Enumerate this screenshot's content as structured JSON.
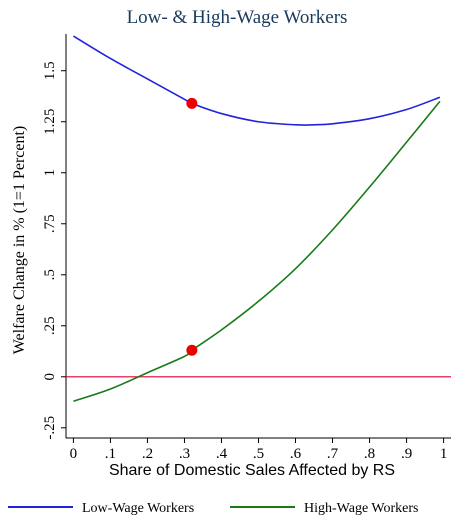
{
  "chart_data": {
    "type": "line",
    "title": "Low- & High-Wage Workers",
    "xlabel": "Share of Domestic Sales Affected by RS",
    "ylabel": "Welfare Change in % (1=1 Percent)",
    "xlim": [
      -0.02,
      1.02
    ],
    "ylim": [
      -0.3,
      1.68
    ],
    "xticks": [
      0,
      0.1,
      0.2,
      0.3,
      0.4,
      0.5,
      0.6,
      0.7,
      0.8,
      0.9,
      1
    ],
    "xtick_labels": [
      "0",
      ".1",
      ".2",
      ".3",
      ".4",
      ".5",
      ".6",
      ".7",
      ".8",
      ".9",
      "1"
    ],
    "yticks": [
      -0.25,
      0,
      0.25,
      0.5,
      0.75,
      1,
      1.25,
      1.5
    ],
    "ytick_labels": [
      "-.25",
      "0",
      ".25",
      ".5",
      ".75",
      "1",
      "1.25",
      "1.5"
    ],
    "grid": false,
    "legend": "bottom",
    "reference_line": {
      "y": 0,
      "color": "#e0003c"
    },
    "series": [
      {
        "name": "Low-Wage Workers",
        "color": "#2222dd",
        "x": [
          0,
          0.1,
          0.2,
          0.3,
          0.32,
          0.4,
          0.5,
          0.6,
          0.65,
          0.7,
          0.8,
          0.9,
          0.99
        ],
        "y": [
          1.67,
          1.56,
          1.46,
          1.36,
          1.34,
          1.29,
          1.25,
          1.235,
          1.235,
          1.24,
          1.265,
          1.31,
          1.37
        ]
      },
      {
        "name": "High-Wage Workers",
        "color": "#1a7a1a",
        "x": [
          0,
          0.1,
          0.2,
          0.3,
          0.32,
          0.4,
          0.5,
          0.6,
          0.7,
          0.8,
          0.9,
          0.99
        ],
        "y": [
          -0.12,
          -0.06,
          0.02,
          0.1,
          0.13,
          0.23,
          0.37,
          0.53,
          0.72,
          0.93,
          1.15,
          1.35
        ]
      }
    ],
    "markers": [
      {
        "x": 0.32,
        "y": 1.34,
        "color": "#ee0000"
      },
      {
        "x": 0.32,
        "y": 0.13,
        "color": "#ee0000"
      }
    ]
  }
}
